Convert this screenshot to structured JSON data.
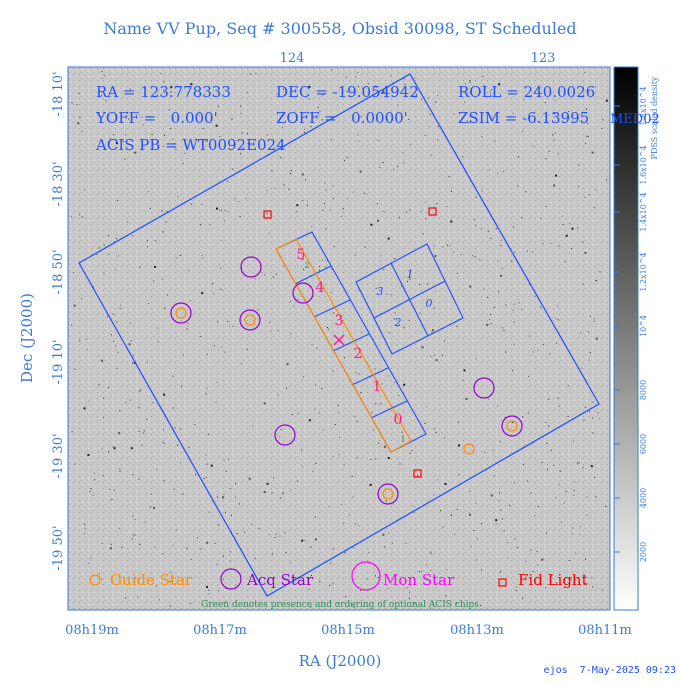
{
  "title": "Name VV Pup, Seq # 300558, Obsid 30098, ST Scheduled",
  "header": {
    "ra": "RA = 123.778333",
    "dec": "DEC = -19.054942",
    "roll": "ROLL = 240.0026",
    "yoff": "YOFF =   0.000'",
    "zoff": "ZOFF =   0.0000'",
    "zsim": "ZSIM = -6.13995",
    "acis_pb": "ACIS PB = WT0092E024",
    "edge_text": "MED02"
  },
  "top_axis_ticks": [
    "124",
    "123"
  ],
  "ra_ticks": [
    "08h19m",
    "08h17m",
    "08h15m",
    "08h13m",
    "08h11m"
  ],
  "dec_ticks": [
    "-18 10'",
    "-18 30'",
    "-18 50'",
    "-19 10'",
    "-19 30'",
    "-19 50'"
  ],
  "x_label": "RA (J2000)",
  "y_label": "Dec (J2000)",
  "colorbar": {
    "label": "PDSS scaled density",
    "ticks": [
      "2000",
      "4000",
      "6000",
      "8000",
      "10^4",
      "1.2x10^4",
      "1.4x10^4",
      "1.6x10^4",
      "1.8x10^4"
    ]
  },
  "legend": {
    "guide": "Guide Star",
    "acq": "Acq Star",
    "mon": "Mon Star",
    "fid": "Fid Light",
    "note": "Green denotes presence and ordering of optional ACIS chips"
  },
  "acis_s_chips": [
    "5",
    "4",
    "3",
    "2",
    "1",
    "0"
  ],
  "acis_i_chips": [
    "3",
    "1",
    "2",
    "0"
  ],
  "footer": "ejos  7-May-2025 09:23",
  "colors": {
    "frame": "#1f4fff",
    "label": "#3a7bd5",
    "guide": "#ff8c00",
    "acq": "#9400d3",
    "mon": "#ff00ff",
    "fid": "#ff0000",
    "chip_s": "#ff8c00",
    "chip_num": "#ff1493",
    "note": "#2e8b57"
  }
}
